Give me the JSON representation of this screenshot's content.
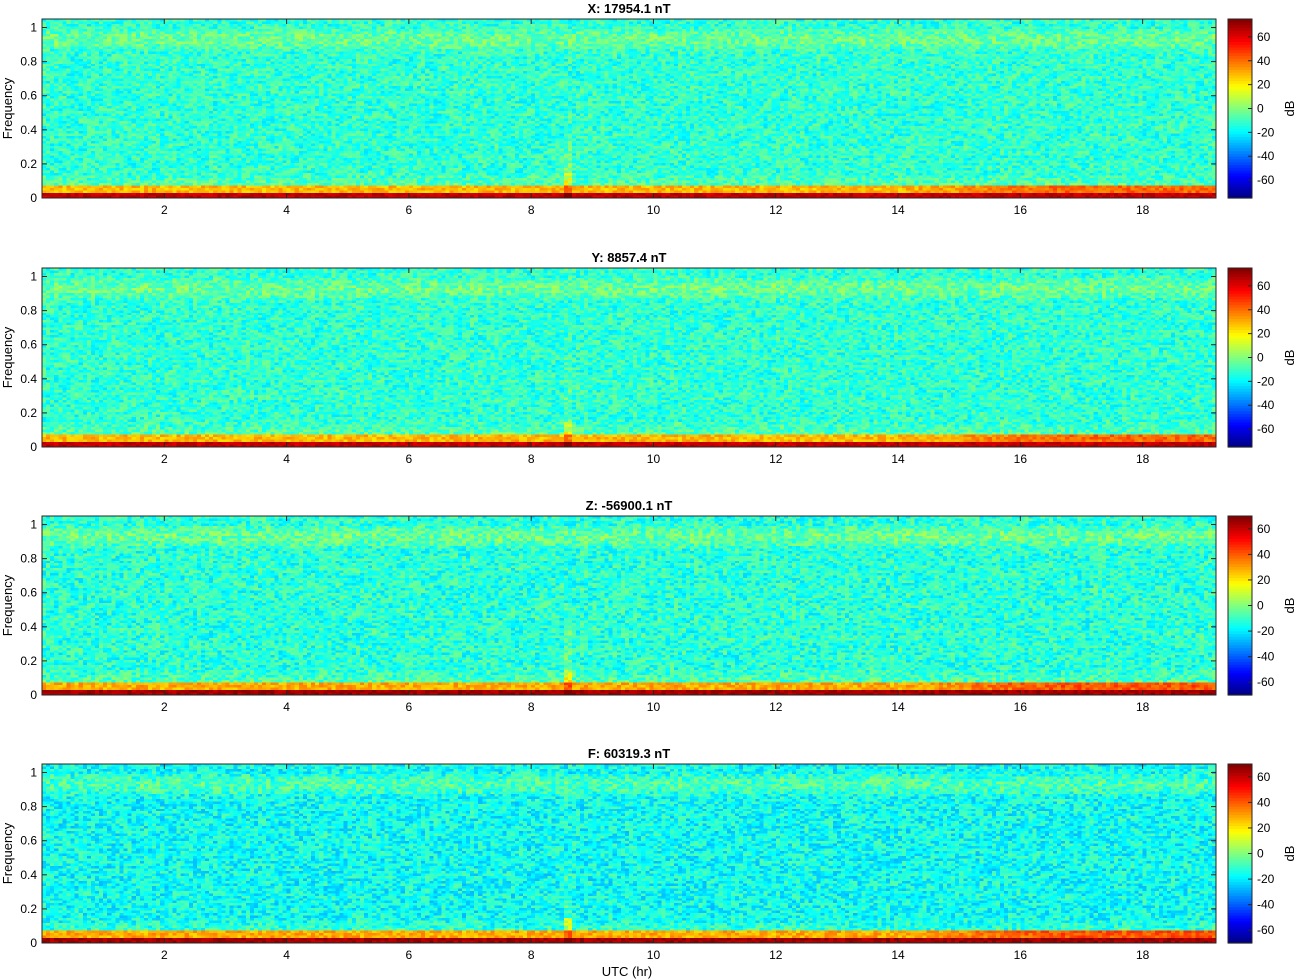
{
  "figure": {
    "xlabel": "UTC (hr)",
    "colormap": "jet"
  },
  "chart_data": [
    {
      "type": "heatmap",
      "title": "X: 17954.1 nT",
      "xlabel": "",
      "ylabel": "Frequency",
      "xlim": [
        0,
        19.2
      ],
      "ylim": [
        0,
        1.05
      ],
      "xticks": [
        2,
        4,
        6,
        8,
        10,
        12,
        14,
        16,
        18
      ],
      "yticks": [
        0,
        0.2,
        0.4,
        0.6,
        0.8,
        1
      ],
      "colorbar": {
        "label": "dB",
        "ticks": [
          60,
          40,
          20,
          0,
          -20,
          -40,
          -60
        ],
        "clim": [
          -75,
          75
        ]
      },
      "grid": false
    },
    {
      "type": "heatmap",
      "title": "Y: 8857.4 nT",
      "xlabel": "",
      "ylabel": "Frequency",
      "xlim": [
        0,
        19.2
      ],
      "ylim": [
        0,
        1.05
      ],
      "xticks": [
        2,
        4,
        6,
        8,
        10,
        12,
        14,
        16,
        18
      ],
      "yticks": [
        0,
        0.2,
        0.4,
        0.6,
        0.8,
        1
      ],
      "colorbar": {
        "label": "dB",
        "ticks": [
          60,
          40,
          20,
          0,
          -20,
          -40,
          -60
        ],
        "clim": [
          -75,
          75
        ]
      },
      "grid": false
    },
    {
      "type": "heatmap",
      "title": "Z: -56900.1 nT",
      "xlabel": "",
      "ylabel": "Frequency",
      "xlim": [
        0,
        19.2
      ],
      "ylim": [
        0,
        1.05
      ],
      "xticks": [
        2,
        4,
        6,
        8,
        10,
        12,
        14,
        16,
        18
      ],
      "yticks": [
        0,
        0.2,
        0.4,
        0.6,
        0.8,
        1
      ],
      "colorbar": {
        "label": "dB",
        "ticks": [
          60,
          40,
          20,
          0,
          -20,
          -40,
          -60
        ],
        "clim": [
          -70,
          70
        ]
      },
      "grid": false
    },
    {
      "type": "heatmap",
      "title": "F: 60319.3 nT",
      "xlabel": "UTC (hr)",
      "ylabel": "Frequency",
      "xlim": [
        0,
        19.2
      ],
      "ylim": [
        0,
        1.05
      ],
      "xticks": [
        2,
        4,
        6,
        8,
        10,
        12,
        14,
        16,
        18
      ],
      "yticks": [
        0,
        0.2,
        0.4,
        0.6,
        0.8,
        1
      ],
      "colorbar": {
        "label": "dB",
        "ticks": [
          60,
          40,
          20,
          0,
          -20,
          -40,
          -60
        ],
        "clim": [
          -70,
          70
        ]
      },
      "grid": false
    }
  ]
}
